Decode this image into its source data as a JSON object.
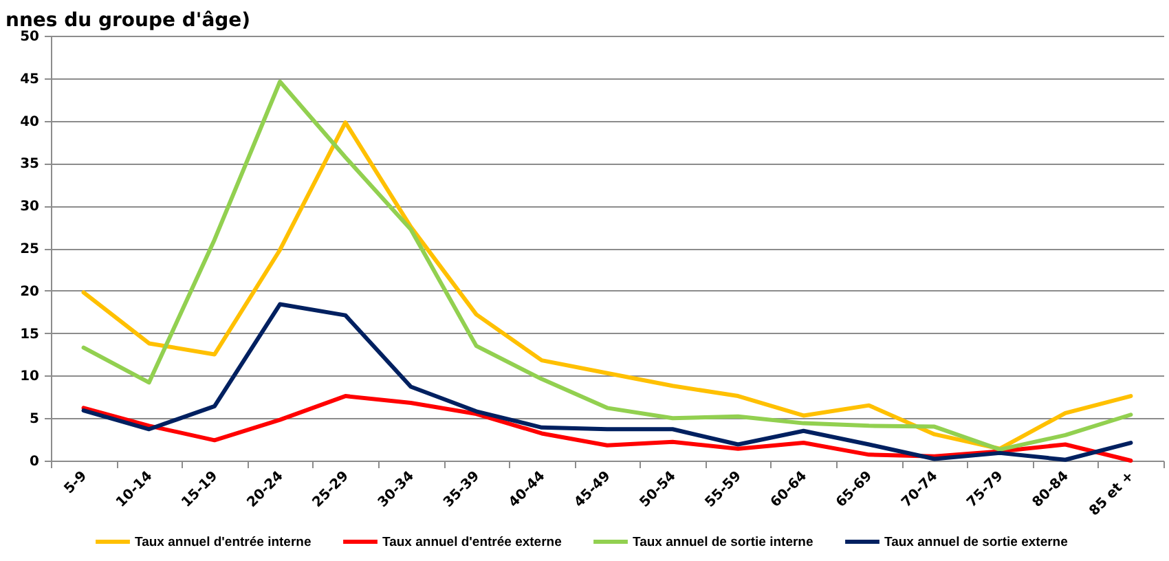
{
  "chart_data": {
    "type": "line",
    "title": "nnes du groupe d'âge)",
    "categories": [
      "5-9",
      "10-14",
      "15-19",
      "20-24",
      "25-29",
      "30-34",
      "35-39",
      "40-44",
      "45-49",
      "50-54",
      "55-59",
      "60-64",
      "65-69",
      "70-74",
      "75-79",
      "80-84",
      "85 et +"
    ],
    "series": [
      {
        "name": "Taux annuel d'entrée interne",
        "color": "#ffc000",
        "values": [
          19.8,
          13.8,
          12.5,
          24.8,
          39.8,
          27.5,
          17.2,
          11.8,
          10.3,
          8.8,
          7.6,
          5.3,
          6.5,
          3.1,
          1.4,
          5.6,
          7.6
        ]
      },
      {
        "name": "Taux annuel d'entrée externe",
        "color": "#ff0000",
        "values": [
          6.2,
          4.1,
          2.4,
          4.8,
          7.6,
          6.8,
          5.5,
          3.2,
          1.8,
          2.2,
          1.4,
          2.1,
          0.7,
          0.5,
          1.1,
          1.9,
          0
        ]
      },
      {
        "name": "Taux annuel de sortie interne",
        "color": "#92d050",
        "values": [
          13.3,
          9.2,
          26,
          44.6,
          35.7,
          27.2,
          13.5,
          9.6,
          6.2,
          5.0,
          5.2,
          4.4,
          4.1,
          4.0,
          1.3,
          3.0,
          5.4
        ]
      },
      {
        "name": "Taux annuel de sortie externe",
        "color": "#002060",
        "values": [
          5.9,
          3.7,
          6.4,
          18.4,
          17.1,
          8.7,
          5.8,
          3.9,
          3.7,
          3.7,
          1.9,
          3.5,
          1.9,
          0.2,
          0.9,
          0.1,
          2.1
        ]
      }
    ],
    "ylim": [
      0,
      50
    ],
    "yticks": [
      0,
      5,
      10,
      15,
      20,
      25,
      30,
      35,
      40,
      45,
      50
    ],
    "grid": "y",
    "legend": "bottom"
  }
}
